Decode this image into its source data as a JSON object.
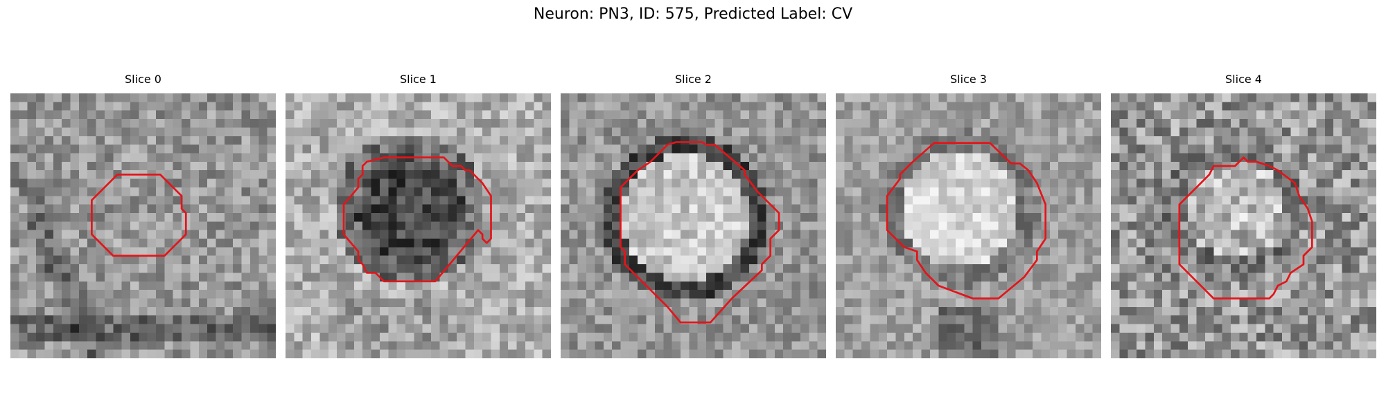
{
  "figure": {
    "title": "Neuron: PN3, ID: 575, Predicted Label: CV"
  },
  "panels": [
    {
      "title": "Slice 0",
      "seed": 11,
      "scene": "small-ring"
    },
    {
      "title": "Slice 1",
      "seed": 29,
      "scene": "dark-vesicle"
    },
    {
      "title": "Slice 2",
      "seed": 47,
      "scene": "bright-dark-ring"
    },
    {
      "title": "Slice 3",
      "seed": 63,
      "scene": "bright-large"
    },
    {
      "title": "Slice 4",
      "seed": 81,
      "scene": "bright-noisy"
    }
  ],
  "colors": {
    "contour": "#e3151a",
    "background": "#ffffff"
  }
}
